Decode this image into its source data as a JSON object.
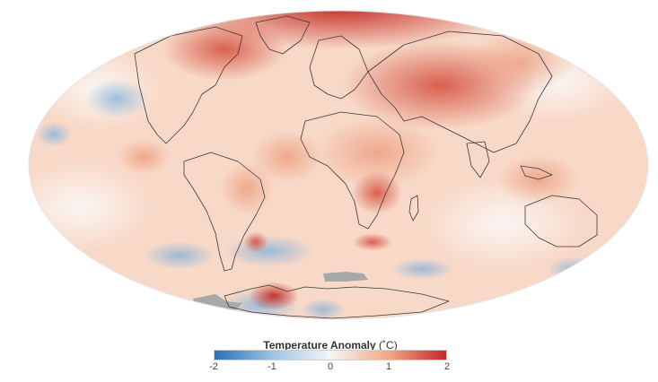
{
  "map": {
    "projection": "mollweide",
    "no_data_color": "#a8a8a8",
    "land_outline_color": "#3a3a3a",
    "base_color": "#f8d9c8",
    "warm_color": "#c9312a",
    "cool_color": "#3a78bd"
  },
  "legend": {
    "title": "Temperature Anomaly",
    "unit": "(˚C)",
    "ticks": [
      "-2",
      "-1",
      "0",
      "1",
      "2"
    ],
    "range": [
      -2,
      2
    ],
    "colors": {
      "low": "#2a6fb8",
      "mid_low": "#9fc3e4",
      "zero": "#f5f5f5",
      "mid_high": "#f1a985",
      "high": "#c3272b"
    }
  }
}
